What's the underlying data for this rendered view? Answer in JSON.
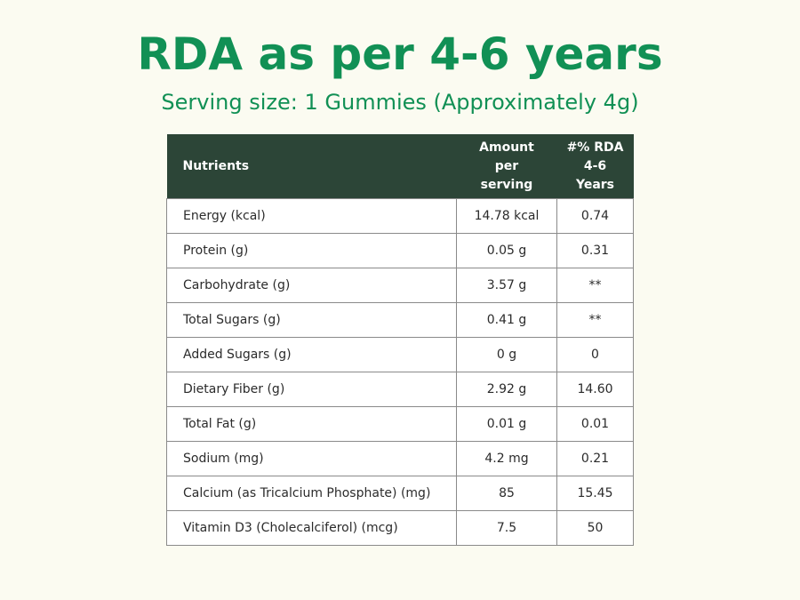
{
  "title": "RDA as per 4-6 years",
  "subtitle": "Serving size: 1 Gummies (Approximately 4g)",
  "colors": {
    "title_green": "#119055",
    "header_bg": "#2c4537",
    "page_bg": "#fbfbf1"
  },
  "table": {
    "headers": {
      "nutrients": "Nutrients",
      "amount": [
        "Amount",
        "per",
        "serving"
      ],
      "rda": [
        "#% RDA",
        "4-6",
        "Years"
      ]
    },
    "rows": [
      {
        "nutrient": "Energy (kcal)",
        "amount": "14.78 kcal",
        "rda": "0.74"
      },
      {
        "nutrient": "Protein (g)",
        "amount": "0.05 g",
        "rda": "0.31"
      },
      {
        "nutrient": "Carbohydrate (g)",
        "amount": "3.57 g",
        "rda": "**"
      },
      {
        "nutrient": "Total Sugars (g)",
        "amount": "0.41 g",
        "rda": "**"
      },
      {
        "nutrient": "Added Sugars (g)",
        "amount": "0 g",
        "rda": "0"
      },
      {
        "nutrient": "Dietary Fiber (g)",
        "amount": "2.92 g",
        "rda": "14.60"
      },
      {
        "nutrient": "Total Fat (g)",
        "amount": "0.01 g",
        "rda": "0.01"
      },
      {
        "nutrient": "Sodium (mg)",
        "amount": "4.2 mg",
        "rda": "0.21"
      },
      {
        "nutrient": "Calcium (as Tricalcium Phosphate) (mg)",
        "amount": "85",
        "rda": "15.45"
      },
      {
        "nutrient": "Vitamin D3 (Cholecalciferol) (mcg)",
        "amount": "7.5",
        "rda": "50"
      }
    ]
  }
}
